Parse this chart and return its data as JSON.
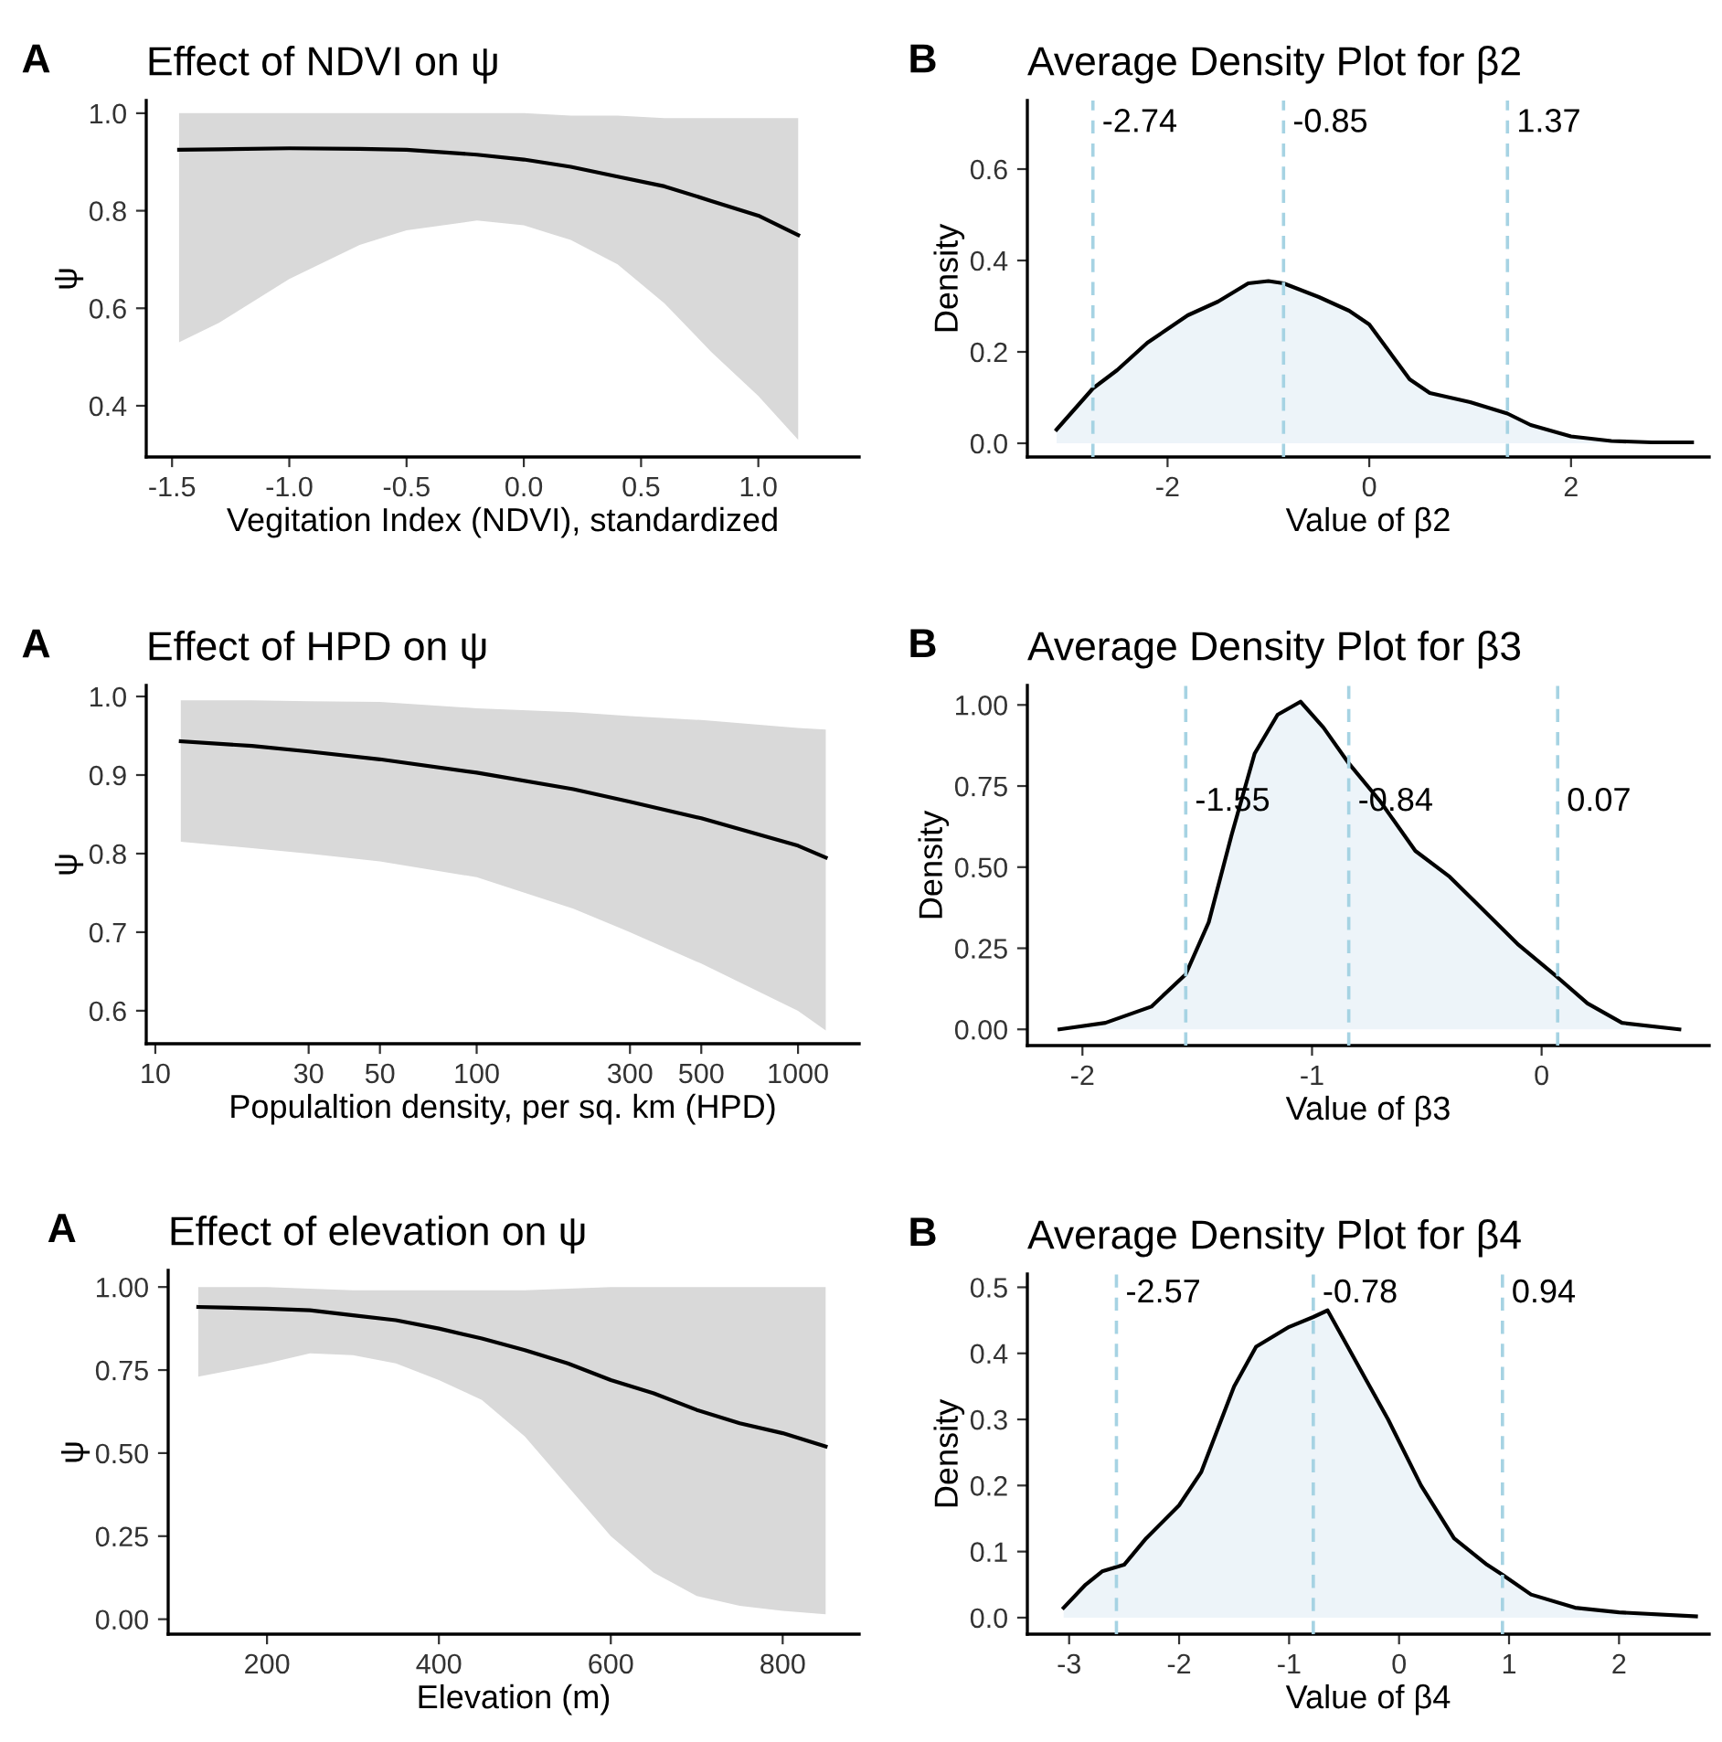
{
  "chart_data": [
    {
      "type": "line",
      "title": "Effect of NDVI on ψ",
      "xlabel": "Vegitation Index (NDVI), standardized",
      "ylabel": "ψ",
      "annotations": [
        "A"
      ],
      "series": [
        {
          "color": "#000000",
          "x": [
            -1.47,
            -1.3,
            -1.0,
            -0.7,
            -0.5,
            -0.2,
            0,
            0.2,
            0.4,
            0.6,
            0.8,
            1.0,
            1.17
          ],
          "values": [
            0.925,
            0.926,
            0.928,
            0.927,
            0.925,
            0.915,
            0.905,
            0.89,
            0.87,
            0.85,
            0.82,
            0.79,
            0.75
          ],
          "lower": [
            0.53,
            0.57,
            0.66,
            0.73,
            0.76,
            0.78,
            0.77,
            0.74,
            0.69,
            0.61,
            0.51,
            0.42,
            0.33
          ],
          "upper": [
            1.0,
            1.0,
            1.0,
            1.0,
            1.0,
            1.0,
            1.0,
            0.995,
            0.995,
            0.99,
            0.99,
            0.99,
            0.99
          ]
        }
      ],
      "xlim": [
        -1.61,
        1.43
      ],
      "ylim": [
        0.295,
        1.026
      ],
      "xticks": [
        -1.5,
        {
          "value": -1,
          "label": "-1.0"
        },
        -0.5,
        {
          "value": 0,
          "label": "0.0"
        },
        0.5,
        {
          "value": 1,
          "label": "1.0"
        }
      ],
      "yticks": [
        0.4,
        0.6,
        0.8,
        {
          "value": 1,
          "label": "1.0"
        }
      ],
      "grid": false,
      "legend": false
    },
    {
      "type": "area",
      "title": "Average Density Plot for β2",
      "xlabel": "Value of β2",
      "ylabel": "Density",
      "annotations": [
        "B",
        {
          "text": "-2.74",
          "x": -2.74,
          "y": 0.7
        },
        {
          "text": "-0.85",
          "x": -0.85,
          "y": 0.7
        },
        {
          "text": "1.37",
          "x": 1.37,
          "y": 0.7
        }
      ],
      "series": [
        {
          "color": "#000000",
          "x": [
            -3.1,
            -2.9,
            -2.74,
            -2.5,
            -2.2,
            -1.8,
            -1.5,
            -1.2,
            -1.0,
            -0.85,
            -0.5,
            -0.2,
            0,
            0.2,
            0.4,
            0.6,
            1.0,
            1.37,
            1.6,
            2.0,
            2.4,
            2.8,
            3.2
          ],
          "values": [
            0.03,
            0.08,
            0.12,
            0.16,
            0.22,
            0.28,
            0.31,
            0.35,
            0.355,
            0.35,
            0.32,
            0.29,
            0.26,
            0.2,
            0.14,
            0.11,
            0.09,
            0.065,
            0.04,
            0.015,
            0.005,
            0.002,
            0.002
          ]
        }
      ],
      "ref_lines": [
        {
          "axis": "x",
          "value": -2.74,
          "color": "#a6d3e3",
          "line_style": "dashed"
        },
        {
          "axis": "x",
          "value": -0.85,
          "color": "#a6d3e3",
          "line_style": "dashed"
        },
        {
          "axis": "x",
          "value": 1.37,
          "color": "#a6d3e3",
          "line_style": "dashed"
        }
      ],
      "xlim": [
        -3.39,
        3.37
      ],
      "ylim": [
        -0.03,
        0.75
      ],
      "xticks": [
        -2,
        0,
        2
      ],
      "yticks": [
        {
          "value": 0,
          "label": "0.0"
        },
        0.2,
        0.4,
        0.6
      ],
      "grid": false,
      "legend": false
    },
    {
      "type": "line",
      "title": "Effect of HPD on ψ",
      "xlabel": "Populaltion density, per sq. km (HPD)",
      "ylabel": "ψ",
      "annotations": [
        "A"
      ],
      "log": "x",
      "series": [
        {
          "color": "#000000",
          "x": [
            12,
            20,
            30,
            50,
            100,
            200,
            300,
            500,
            1000,
            1220
          ],
          "values": [
            0.943,
            0.937,
            0.93,
            0.92,
            0.903,
            0.882,
            0.866,
            0.845,
            0.81,
            0.795
          ],
          "lower": [
            0.815,
            0.807,
            0.8,
            0.79,
            0.77,
            0.73,
            0.7,
            0.66,
            0.6,
            0.575
          ],
          "upper": [
            0.995,
            0.995,
            0.994,
            0.993,
            0.985,
            0.98,
            0.975,
            0.97,
            0.96,
            0.958
          ]
        }
      ],
      "xlim": [
        9.37,
        1550
      ],
      "ylim": [
        0.558,
        1.014
      ],
      "xticks": [
        10,
        30,
        50,
        100,
        300,
        500,
        1000
      ],
      "yticks": [
        0.6,
        0.7,
        0.8,
        0.9,
        {
          "value": 1,
          "label": "1.0"
        }
      ],
      "grid": false,
      "legend": false
    },
    {
      "type": "area",
      "title": "Average Density Plot for β3",
      "xlabel": "Value of β3",
      "ylabel": "Density",
      "annotations": [
        "B",
        {
          "text": "-1.55",
          "x": -1.55,
          "y": 0.7
        },
        {
          "text": "-0.84",
          "x": -0.84,
          "y": 0.7
        },
        {
          "text": "0.07",
          "x": 0.07,
          "y": 0.7
        }
      ],
      "series": [
        {
          "color": "#000000",
          "x": [
            -2.1,
            -1.9,
            -1.7,
            -1.55,
            -1.45,
            -1.35,
            -1.25,
            -1.15,
            -1.05,
            -0.95,
            -0.84,
            -0.7,
            -0.55,
            -0.4,
            -0.3,
            -0.1,
            0.07,
            0.2,
            0.35,
            0.6
          ],
          "values": [
            0.0,
            0.02,
            0.07,
            0.17,
            0.33,
            0.6,
            0.85,
            0.97,
            1.01,
            0.93,
            0.82,
            0.7,
            0.55,
            0.47,
            0.4,
            0.26,
            0.16,
            0.08,
            0.02,
            0.0
          ]
        }
      ],
      "ref_lines": [
        {
          "axis": "x",
          "value": -1.55,
          "color": "#a6d3e3",
          "line_style": "dashed"
        },
        {
          "axis": "x",
          "value": -0.84,
          "color": "#a6d3e3",
          "line_style": "dashed"
        },
        {
          "axis": "x",
          "value": 0.07,
          "color": "#a6d3e3",
          "line_style": "dashed"
        }
      ],
      "xlim": [
        -2.24,
        0.73
      ],
      "ylim": [
        -0.05,
        1.06
      ],
      "xticks": [
        -2,
        -1,
        0
      ],
      "yticks": [
        {
          "value": 0,
          "label": "0.00"
        },
        0.25,
        {
          "value": 0.5,
          "label": "0.50"
        },
        0.75,
        {
          "value": 1,
          "label": "1.00"
        }
      ],
      "grid": false,
      "legend": false
    },
    {
      "type": "line",
      "title": "Effect of elevation on ψ",
      "xlabel": "Elevation (m)",
      "ylabel": "ψ",
      "annotations": [
        "A"
      ],
      "series": [
        {
          "color": "#000000",
          "x": [
            120,
            200,
            250,
            300,
            350,
            400,
            450,
            500,
            550,
            600,
            650,
            700,
            750,
            800,
            850
          ],
          "values": [
            0.94,
            0.935,
            0.93,
            0.915,
            0.9,
            0.875,
            0.845,
            0.81,
            0.77,
            0.72,
            0.68,
            0.63,
            0.59,
            0.56,
            0.52
          ],
          "lower": [
            0.73,
            0.77,
            0.8,
            0.795,
            0.77,
            0.72,
            0.66,
            0.55,
            0.4,
            0.25,
            0.14,
            0.07,
            0.04,
            0.025,
            0.015
          ],
          "upper": [
            1.0,
            1.0,
            0.995,
            0.99,
            0.99,
            0.99,
            0.99,
            0.99,
            0.995,
            1.0,
            1.0,
            1.0,
            1.0,
            1.0,
            1.0
          ]
        }
      ],
      "xlim": [
        85,
        889
      ],
      "ylim": [
        -0.045,
        1.05
      ],
      "xticks": [
        200,
        400,
        600,
        800
      ],
      "yticks": [
        {
          "value": 0,
          "label": "0.00"
        },
        0.25,
        {
          "value": 0.5,
          "label": "0.50"
        },
        0.75,
        {
          "value": 1,
          "label": "1.00"
        }
      ],
      "grid": false,
      "legend": false
    },
    {
      "type": "area",
      "title": "Average Density Plot for β4",
      "xlabel": "Value of β4",
      "ylabel": "Density",
      "annotations": [
        "B",
        {
          "text": "-2.57",
          "x": -2.57,
          "y": 0.49
        },
        {
          "text": "-0.78",
          "x": -0.78,
          "y": 0.49
        },
        {
          "text": "0.94",
          "x": 0.94,
          "y": 0.49
        }
      ],
      "series": [
        {
          "color": "#000000",
          "x": [
            -3.05,
            -2.85,
            -2.7,
            -2.5,
            -2.3,
            -2.0,
            -1.8,
            -1.5,
            -1.3,
            -1.0,
            -0.78,
            -0.65,
            -0.5,
            -0.3,
            -0.1,
            0.2,
            0.5,
            0.8,
            0.94,
            1.2,
            1.6,
            2.0,
            2.7
          ],
          "values": [
            0.015,
            0.05,
            0.07,
            0.08,
            0.12,
            0.17,
            0.22,
            0.35,
            0.41,
            0.44,
            0.455,
            0.465,
            0.42,
            0.36,
            0.3,
            0.2,
            0.12,
            0.08,
            0.065,
            0.035,
            0.015,
            0.008,
            0.002
          ]
        }
      ],
      "ref_lines": [
        {
          "axis": "x",
          "value": -2.57,
          "color": "#a6d3e3",
          "line_style": "dashed"
        },
        {
          "axis": "x",
          "value": -0.78,
          "color": "#a6d3e3",
          "line_style": "dashed"
        },
        {
          "axis": "x",
          "value": 0.94,
          "color": "#a6d3e3",
          "line_style": "dashed"
        }
      ],
      "xlim": [
        -3.38,
        2.82
      ],
      "ylim": [
        -0.025,
        0.52
      ],
      "xticks": [
        -3,
        -2,
        -1,
        0,
        1,
        2
      ],
      "yticks": [
        {
          "value": 0,
          "label": "0.0"
        },
        0.1,
        0.2,
        0.3,
        0.4,
        0.5
      ],
      "grid": false,
      "legend": false
    }
  ]
}
